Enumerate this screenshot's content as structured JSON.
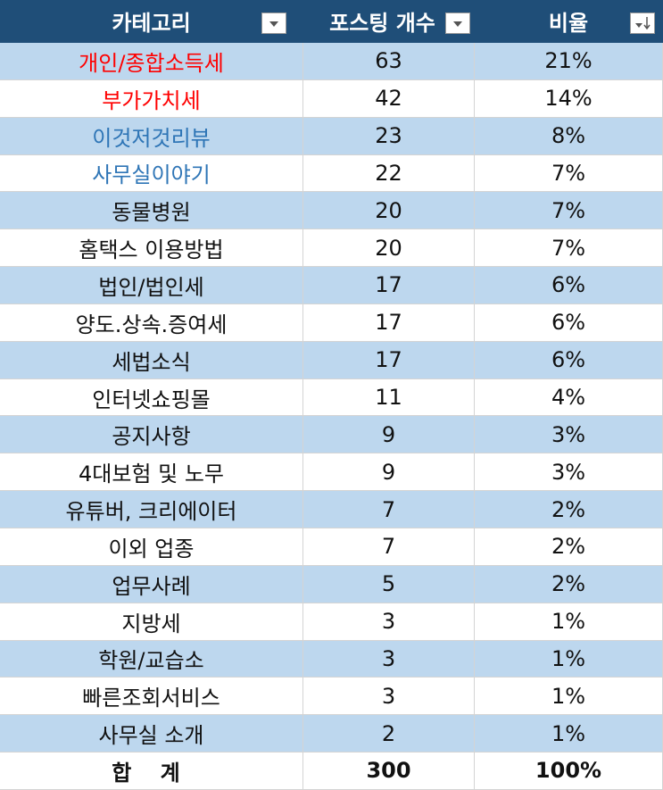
{
  "table": {
    "header": [
      "카테고리",
      "포스팅 개수",
      "비율"
    ],
    "rows": [
      [
        "개인/종합소득세",
        63,
        "21%"
      ],
      [
        "부가가치세",
        42,
        "14%"
      ],
      [
        "이것저것리뷰",
        23,
        "8%"
      ],
      [
        "사무실이야기",
        22,
        "7%"
      ],
      [
        "동물병원",
        20,
        "7%"
      ],
      [
        "홈택스 이용방법",
        20,
        "7%"
      ],
      [
        "법인/법인세",
        17,
        "6%"
      ],
      [
        "양도.상속.증여세",
        17,
        "6%"
      ],
      [
        "세법소식",
        17,
        "6%"
      ],
      [
        "인터넷쇼핑몰",
        11,
        "4%"
      ],
      [
        "공지사항",
        9,
        "3%"
      ],
      [
        "4대보험 및 노무",
        9,
        "3%"
      ],
      [
        "유튜버, 크리에이터",
        7,
        "2%"
      ],
      [
        "이외 업종",
        7,
        "2%"
      ],
      [
        "업무사례",
        5,
        "2%"
      ],
      [
        "지방세",
        3,
        "1%"
      ],
      [
        "학원/교습소",
        3,
        "1%"
      ],
      [
        "빠른조회서비스",
        3,
        "1%"
      ],
      [
        "사무실 소개",
        2,
        "1%"
      ]
    ],
    "total": [
      "합 계",
      300,
      "100%"
    ]
  }
}
